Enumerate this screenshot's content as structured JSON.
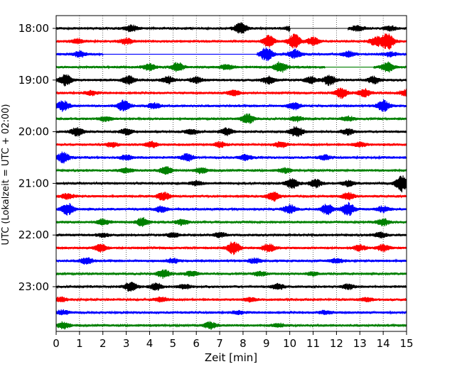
{
  "chart_data": {
    "type": "line",
    "xlabel": "Zeit  [min]",
    "ylabel": "UTC (Lokalzeit = UTC + 02:00)",
    "xlim": [
      0,
      15
    ],
    "xticks": [
      0,
      1,
      2,
      3,
      4,
      5,
      6,
      7,
      8,
      9,
      10,
      11,
      12,
      13,
      14,
      15
    ],
    "grid": "vertical dotted at each minute",
    "yticks": [
      "18:00",
      "19:00",
      "20:00",
      "21:00",
      "22:00",
      "23:00"
    ],
    "colors": [
      "#000000",
      "#ff0000",
      "#0000ff",
      "#008000"
    ],
    "traces": [
      {
        "start": "18:00",
        "color": "#000000",
        "events": [
          [
            3.2,
            0.6
          ],
          [
            7.9,
            1
          ],
          [
            10.1,
            0.6
          ],
          [
            12.9,
            0.5
          ],
          [
            14.3,
            0.4
          ]
        ],
        "gaps": [
          [
            10.0,
            12.5
          ]
        ]
      },
      {
        "start": "18:15",
        "color": "#ff0000",
        "events": [
          [
            0.9,
            0.4
          ],
          [
            3.0,
            0.5
          ],
          [
            9.1,
            1.0
          ],
          [
            10.2,
            1.3
          ],
          [
            11.0,
            0.7
          ],
          [
            13.7,
            0.8
          ],
          [
            14.2,
            1.5
          ]
        ]
      },
      {
        "start": "18:30",
        "color": "#0000ff",
        "events": [
          [
            1.0,
            0.5
          ],
          [
            9.0,
            1.2
          ],
          [
            10.2,
            0.8
          ],
          [
            12.5,
            0.5
          ],
          [
            14.3,
            0.4
          ]
        ],
        "gaps": [
          [
            2.0,
            8.6
          ]
        ]
      },
      {
        "start": "18:45",
        "color": "#008000",
        "events": [
          [
            4.0,
            0.6
          ],
          [
            5.2,
            0.8
          ],
          [
            7.3,
            0.5
          ],
          [
            9.6,
            1.0
          ],
          [
            14.2,
            0.9
          ]
        ],
        "gaps": [
          [
            11.5,
            13.6
          ]
        ]
      },
      {
        "start": "19:00",
        "color": "#000000",
        "events": [
          [
            0.4,
            1.0
          ],
          [
            3.1,
            0.7
          ],
          [
            4.8,
            0.6
          ],
          [
            6.0,
            0.5
          ],
          [
            9.1,
            0.7
          ],
          [
            10.9,
            0.6
          ],
          [
            11.7,
            0.9
          ],
          [
            13.6,
            0.6
          ]
        ]
      },
      {
        "start": "19:15",
        "color": "#ff0000",
        "events": [
          [
            1.5,
            0.4
          ],
          [
            7.6,
            0.5
          ],
          [
            12.2,
            0.9
          ],
          [
            13.2,
            0.7
          ],
          [
            15.0,
            0.6
          ]
        ]
      },
      {
        "start": "19:30",
        "color": "#0000ff",
        "events": [
          [
            0.3,
            0.9
          ],
          [
            2.9,
            1.0
          ],
          [
            4.2,
            0.5
          ],
          [
            10.2,
            0.6
          ],
          [
            14.0,
            1.0
          ]
        ]
      },
      {
        "start": "19:45",
        "color": "#008000",
        "events": [
          [
            2.1,
            0.4
          ],
          [
            8.2,
            0.9
          ],
          [
            10.3,
            0.4
          ],
          [
            12.5,
            0.4
          ]
        ]
      },
      {
        "start": "20:00",
        "color": "#000000",
        "events": [
          [
            0.9,
            0.8
          ],
          [
            3.0,
            0.5
          ],
          [
            5.8,
            0.5
          ],
          [
            7.3,
            0.6
          ],
          [
            10.3,
            1.0
          ],
          [
            12.5,
            0.5
          ]
        ]
      },
      {
        "start": "20:15",
        "color": "#ff0000",
        "events": [
          [
            2.4,
            0.4
          ],
          [
            4.1,
            0.5
          ],
          [
            7.0,
            0.5
          ],
          [
            9.6,
            0.5
          ],
          [
            13.0,
            0.4
          ]
        ]
      },
      {
        "start": "20:30",
        "color": "#0000ff",
        "events": [
          [
            0.3,
            0.9
          ],
          [
            3.0,
            0.4
          ],
          [
            5.6,
            0.6
          ],
          [
            8.1,
            0.5
          ],
          [
            11.5,
            0.4
          ]
        ]
      },
      {
        "start": "20:45",
        "color": "#008000",
        "events": [
          [
            3.0,
            0.4
          ],
          [
            4.7,
            0.7
          ],
          [
            6.2,
            0.5
          ],
          [
            9.8,
            0.4
          ]
        ]
      },
      {
        "start": "21:00",
        "color": "#000000",
        "events": [
          [
            6.0,
            0.4
          ],
          [
            10.1,
            0.9
          ],
          [
            11.1,
            0.7
          ],
          [
            12.5,
            0.5
          ],
          [
            14.8,
            1.5
          ]
        ]
      },
      {
        "start": "21:15",
        "color": "#ff0000",
        "events": [
          [
            0.5,
            0.5
          ],
          [
            4.6,
            0.7
          ],
          [
            9.3,
            0.8
          ],
          [
            12.5,
            0.6
          ]
        ]
      },
      {
        "start": "21:30",
        "color": "#0000ff",
        "events": [
          [
            0.5,
            1.0
          ],
          [
            4.5,
            0.5
          ],
          [
            10.0,
            0.8
          ],
          [
            11.6,
            0.9
          ],
          [
            12.5,
            1.2
          ],
          [
            14.0,
            0.5
          ]
        ]
      },
      {
        "start": "21:45",
        "color": "#008000",
        "events": [
          [
            2.0,
            0.5
          ],
          [
            3.7,
            0.8
          ],
          [
            5.4,
            0.5
          ],
          [
            14.0,
            0.6
          ]
        ]
      },
      {
        "start": "22:00",
        "color": "#000000",
        "events": [
          [
            2.0,
            0.3
          ],
          [
            5.0,
            0.4
          ],
          [
            7.0,
            0.4
          ],
          [
            13.9,
            0.5
          ]
        ]
      },
      {
        "start": "22:15",
        "color": "#ff0000",
        "events": [
          [
            1.9,
            0.7
          ],
          [
            7.6,
            1.2
          ],
          [
            9.1,
            0.7
          ],
          [
            13.0,
            0.5
          ],
          [
            14.0,
            0.6
          ]
        ]
      },
      {
        "start": "22:30",
        "color": "#0000ff",
        "events": [
          [
            1.3,
            0.6
          ],
          [
            5.0,
            0.4
          ],
          [
            8.5,
            0.4
          ],
          [
            12.0,
            0.4
          ]
        ]
      },
      {
        "start": "22:45",
        "color": "#008000",
        "events": [
          [
            4.6,
            0.7
          ],
          [
            5.8,
            0.4
          ],
          [
            8.7,
            0.4
          ],
          [
            11.0,
            0.3
          ]
        ]
      },
      {
        "start": "23:00",
        "color": "#000000",
        "events": [
          [
            3.2,
            0.8
          ],
          [
            4.3,
            0.6
          ],
          [
            5.5,
            0.4
          ],
          [
            9.5,
            0.5
          ],
          [
            12.5,
            0.4
          ]
        ]
      },
      {
        "start": "23:15",
        "color": "#ff0000",
        "events": [
          [
            0.2,
            0.4
          ],
          [
            4.5,
            0.4
          ],
          [
            8.3,
            0.3
          ],
          [
            13.3,
            0.3
          ]
        ]
      },
      {
        "start": "23:30",
        "color": "#0000ff",
        "events": [
          [
            0.3,
            0.4
          ],
          [
            7.8,
            0.3
          ],
          [
            11.5,
            0.3
          ]
        ]
      },
      {
        "start": "23:45",
        "color": "#008000",
        "events": [
          [
            0.3,
            0.6
          ],
          [
            6.6,
            0.6
          ],
          [
            9.5,
            0.3
          ]
        ]
      }
    ]
  }
}
